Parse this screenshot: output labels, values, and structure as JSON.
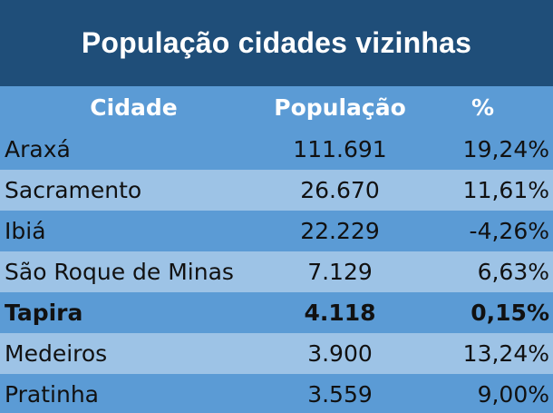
{
  "title": "População cidades vizinhas",
  "columns": {
    "city": "Cidade",
    "population": "População",
    "percent": "%"
  },
  "rows": [
    {
      "city": "Araxá",
      "population": "111.691",
      "percent": "19,24%",
      "bold": false
    },
    {
      "city": "Sacramento",
      "population": "26.670",
      "percent": "11,61%",
      "bold": false
    },
    {
      "city": "Ibiá",
      "population": "22.229",
      "percent": "-4,26%",
      "bold": false
    },
    {
      "city": "São Roque de Minas",
      "population": "7.129",
      "percent": "6,63%",
      "bold": false
    },
    {
      "city": "Tapira",
      "population": "4.118",
      "percent": "0,15%",
      "bold": true
    },
    {
      "city": "Medeiros",
      "population": "3.900",
      "percent": "13,24%",
      "bold": false
    },
    {
      "city": "Pratinha",
      "population": "3.559",
      "percent": "9,00%",
      "bold": false
    }
  ],
  "colors": {
    "title_bg": "#1f4e79",
    "header_bg": "#5b9bd5",
    "row_dark": "#5b9bd5",
    "row_light": "#9dc3e6"
  }
}
